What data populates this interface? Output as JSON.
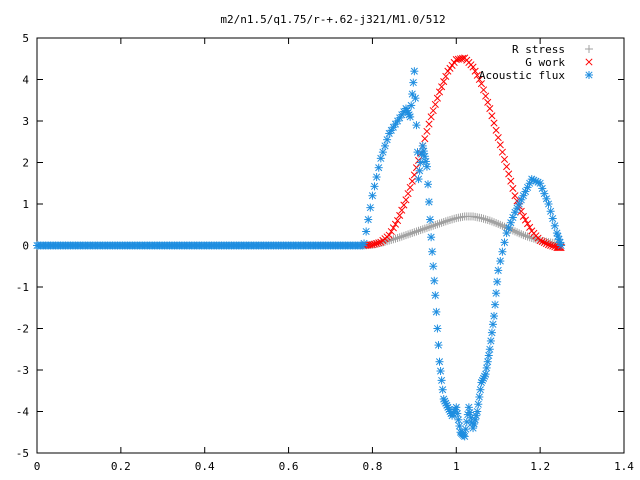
{
  "chart_data": {
    "type": "scatter",
    "title": "m2/n1.5/q1.75/r-+.62-j321/M1.0/512",
    "xlabel": "",
    "ylabel": "",
    "xlim": [
      0,
      1.4
    ],
    "ylim": [
      -5,
      5
    ],
    "x_ticks": [
      "0",
      "0.2",
      "0.4",
      "0.6",
      "0.8",
      "1",
      "1.2",
      "1.4"
    ],
    "y_ticks": [
      "5",
      "4",
      "3",
      "2",
      "1",
      "0",
      "-1",
      "-2",
      "-3",
      "-4",
      "-5"
    ],
    "grid": false,
    "legend_position": "top-right",
    "series": [
      {
        "name": "R stress",
        "marker": "plus",
        "color": "#a0a0a0",
        "points": [
          [
            0.78,
            0.0
          ],
          [
            0.8,
            0.02
          ],
          [
            0.82,
            0.06
          ],
          [
            0.84,
            0.12
          ],
          [
            0.86,
            0.18
          ],
          [
            0.88,
            0.25
          ],
          [
            0.9,
            0.32
          ],
          [
            0.92,
            0.39
          ],
          [
            0.94,
            0.46
          ],
          [
            0.96,
            0.53
          ],
          [
            0.98,
            0.6
          ],
          [
            1.0,
            0.66
          ],
          [
            1.02,
            0.7
          ],
          [
            1.04,
            0.7
          ],
          [
            1.06,
            0.66
          ],
          [
            1.08,
            0.6
          ],
          [
            1.1,
            0.52
          ],
          [
            1.12,
            0.43
          ],
          [
            1.14,
            0.34
          ],
          [
            1.16,
            0.25
          ],
          [
            1.18,
            0.18
          ],
          [
            1.2,
            0.12
          ],
          [
            1.22,
            0.08
          ],
          [
            1.24,
            0.05
          ],
          [
            1.25,
            0.03
          ]
        ]
      },
      {
        "name": "G work",
        "marker": "cross",
        "color": "#ff0000",
        "points": [
          [
            0.78,
            0.0
          ],
          [
            0.8,
            0.02
          ],
          [
            0.82,
            0.08
          ],
          [
            0.84,
            0.25
          ],
          [
            0.86,
            0.6
          ],
          [
            0.88,
            1.1
          ],
          [
            0.9,
            1.7
          ],
          [
            0.92,
            2.4
          ],
          [
            0.94,
            3.1
          ],
          [
            0.96,
            3.7
          ],
          [
            0.98,
            4.2
          ],
          [
            1.0,
            4.48
          ],
          [
            1.02,
            4.52
          ],
          [
            1.04,
            4.3
          ],
          [
            1.06,
            3.9
          ],
          [
            1.08,
            3.3
          ],
          [
            1.1,
            2.6
          ],
          [
            1.12,
            1.9
          ],
          [
            1.14,
            1.2
          ],
          [
            1.16,
            0.7
          ],
          [
            1.18,
            0.35
          ],
          [
            1.2,
            0.12
          ],
          [
            1.22,
            0.02
          ],
          [
            1.24,
            -0.05
          ],
          [
            1.25,
            -0.05
          ]
        ]
      },
      {
        "name": "Acoustic flux",
        "marker": "star",
        "color": "#1f8ee0",
        "points": [
          [
            0.78,
            0.05
          ],
          [
            0.8,
            1.2
          ],
          [
            0.82,
            2.1
          ],
          [
            0.84,
            2.7
          ],
          [
            0.86,
            3.0
          ],
          [
            0.88,
            3.3
          ],
          [
            0.89,
            3.1
          ],
          [
            0.9,
            4.2
          ],
          [
            0.91,
            1.6
          ],
          [
            0.92,
            2.4
          ],
          [
            0.93,
            1.9
          ],
          [
            0.94,
            0.2
          ],
          [
            0.95,
            -1.2
          ],
          [
            0.96,
            -2.8
          ],
          [
            0.97,
            -3.7
          ],
          [
            0.98,
            -3.9
          ],
          [
            0.99,
            -4.1
          ],
          [
            1.0,
            -3.9
          ],
          [
            1.01,
            -4.5
          ],
          [
            1.02,
            -4.6
          ],
          [
            1.03,
            -3.9
          ],
          [
            1.04,
            -4.4
          ],
          [
            1.05,
            -4.0
          ],
          [
            1.06,
            -3.3
          ],
          [
            1.07,
            -3.1
          ],
          [
            1.08,
            -2.5
          ],
          [
            1.09,
            -1.7
          ],
          [
            1.1,
            -0.6
          ],
          [
            1.12,
            0.3
          ],
          [
            1.14,
            0.8
          ],
          [
            1.16,
            1.2
          ],
          [
            1.18,
            1.6
          ],
          [
            1.2,
            1.5
          ],
          [
            1.22,
            1.0
          ],
          [
            1.24,
            0.3
          ],
          [
            1.25,
            0.0
          ]
        ]
      }
    ],
    "baseline_series_x_range": [
      0,
      0.78
    ]
  }
}
